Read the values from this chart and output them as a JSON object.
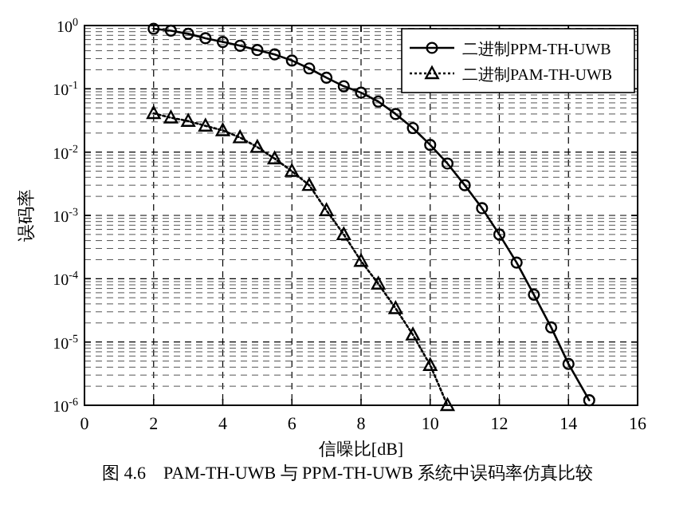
{
  "chart_data": {
    "type": "line",
    "xlabel": "信噪比[dB]",
    "ylabel": "误码率",
    "annotations": [
      "图 4.6　PAM-TH-UWB 与 PPM-TH-UWB 系统中误码率仿真比较"
    ],
    "log": "y",
    "grid": true,
    "legend": "top right",
    "xlim": [
      0,
      16
    ],
    "xticks": [
      0,
      2,
      4,
      6,
      8,
      10,
      12,
      14,
      16
    ],
    "ylim": [
      1e-06,
      1
    ],
    "yticks": [
      {
        "value": 1,
        "label": "10$^{0}$"
      },
      {
        "value": 0.1,
        "label": "10$^{-1}$"
      },
      {
        "value": 0.01,
        "label": "10$^{-2}$"
      },
      {
        "value": 0.001,
        "label": "10$^{-3}$"
      },
      {
        "value": 0.0001,
        "label": "10$^{-4}$"
      },
      {
        "value": 1e-05,
        "label": "10$^{-5}$"
      },
      {
        "value": 1e-06,
        "label": "10$^{-6}$"
      }
    ],
    "series": [
      {
        "name": "二进制PPM-TH-UWB",
        "color": "#000000",
        "marker": "circle",
        "line_style": "solid",
        "x": [
          2,
          2.5,
          3,
          3.5,
          4,
          4.5,
          5,
          5.5,
          6,
          6.5,
          7,
          7.5,
          8,
          8.5,
          9,
          9.5,
          10,
          10.5,
          11,
          11.5,
          12,
          12.5,
          13,
          13.5,
          14,
          14.6
        ],
        "values": [
          0.89,
          0.83,
          0.74,
          0.63,
          0.55,
          0.48,
          0.41,
          0.35,
          0.28,
          0.21,
          0.15,
          0.11,
          0.087,
          0.063,
          0.04,
          0.024,
          0.013,
          0.0066,
          0.003,
          0.0013,
          0.0005,
          0.00018,
          5.6e-05,
          1.7e-05,
          4.5e-06,
          1.2e-06
        ]
      },
      {
        "name": "二进制PAM-TH-UWB",
        "color": "#000000",
        "marker": "triangle",
        "line_style": "dotted",
        "x": [
          2,
          2.5,
          3,
          3.5,
          4,
          4.5,
          5,
          5.5,
          6,
          6.5,
          7,
          7.5,
          8,
          8.5,
          9,
          9.5,
          10,
          10.5
        ],
        "values": [
          0.041,
          0.035,
          0.031,
          0.026,
          0.022,
          0.017,
          0.012,
          0.0079,
          0.005,
          0.003,
          0.0012,
          0.0005,
          0.00019,
          8.3e-05,
          3.4e-05,
          1.3e-05,
          4.3e-06,
          1e-06
        ]
      }
    ]
  }
}
